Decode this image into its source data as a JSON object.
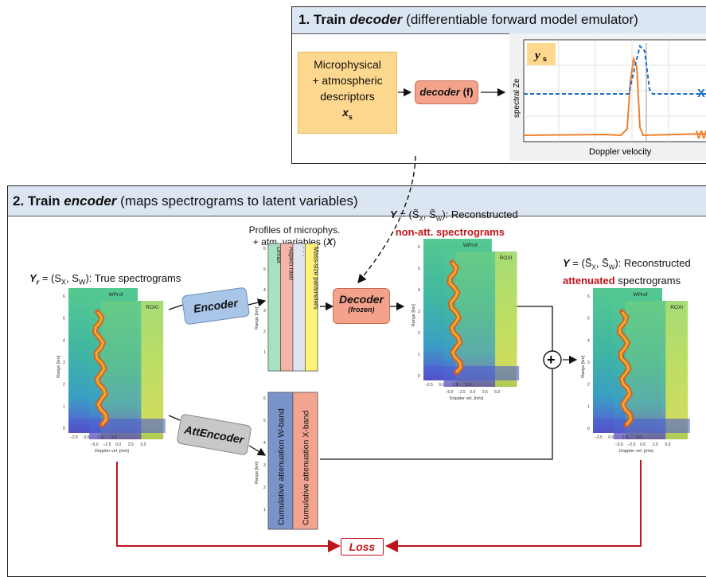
{
  "panel1": {
    "title_number": "1.",
    "title_bold": "Train",
    "title_italic": "decoder",
    "title_rest": "(differentiable forward model emulator)",
    "input_box": {
      "line1": "Microphysical",
      "line2": "+ atmospheric",
      "line3": "descriptors",
      "symbol": "x",
      "subscript": "s"
    },
    "decoder": {
      "name": "decoder",
      "suffix": "(f)"
    },
    "plot": {
      "legend_symbol": "y",
      "legend_subscript": "s",
      "ylabel": "spectral Ze",
      "xlabel": "Doppler velocity",
      "x_label": "X",
      "w_label": "W"
    }
  },
  "panel2": {
    "title_number": "2.",
    "title_bold": "Train",
    "title_italic": "encoder",
    "title_rest": "(maps spectrograms to latent variables)",
    "true_spec": {
      "sym": "Y",
      "sub": "r",
      "eq": "= (S",
      "s1": "X",
      "comma": ", S",
      "s2": "W",
      "rest": "): True spectrograms"
    },
    "profiles_label_line1": "Profiles of microphys.",
    "profiles_label_line2": "+ atm. variables (",
    "profiles_label_sym": "X",
    "profiles_label_end": ")",
    "profile_bars": [
      "Dmax",
      "Aspect ratio",
      "·  ·  ·",
      "Mass-size parameters"
    ],
    "profile_colors": [
      "#a8e0c2",
      "#f6b4a8",
      "#dfe4ef",
      "#fff37a"
    ],
    "att_bars": [
      "Cumulative attenuation W-band",
      "Cumulative attenuation X-band"
    ],
    "att_colors": [
      "#7a93c9",
      "#f2a48e"
    ],
    "range_label": "Range [km]",
    "range_ticks": [
      "6",
      "5",
      "4",
      "3",
      "2",
      "1"
    ],
    "encoder_label": "Encoder",
    "attencoder_label": "AttEncoder",
    "decoder_label": "Decoder",
    "decoder_sub": "(frozen)",
    "recon_nonatt": {
      "sym": "Y",
      "eq": "= (",
      "sx": "S̃",
      "sx_sub": "X",
      "comma": ", ",
      "sw": "S̃",
      "sw_sub": "W",
      "rest": "): Reconstructed",
      "line2": "non-att. spectrograms"
    },
    "recon_att": {
      "sym": "Y",
      "eq": "= (",
      "sx": "S̃",
      "sx_sub": "X",
      "comma": ", ",
      "sw": "S̃",
      "sw_sub": "W",
      "rest": "): Reconstructed",
      "line2_red": "attenuated",
      "line2_rest": "spectrograms"
    },
    "plus": "+",
    "loss": "Loss"
  },
  "spectrogram": {
    "wprof": "WProf",
    "roxi": "ROXI",
    "xlabel": "Doppler vel. [m/s]",
    "ylabel": "Range [km]",
    "yticks": [
      "6",
      "5",
      "4",
      "3",
      "2",
      "1",
      "0"
    ],
    "xticks_back": [
      "−5.0",
      "−2.5",
      "0.0",
      "2.5",
      "5.0"
    ],
    "xticks_front": [
      "−2.5",
      "0.0",
      "2.5",
      "5.0"
    ]
  },
  "colors": {
    "header_bg": "#dbe6f2",
    "input_box": "#fed88e",
    "decoder_fill": "#f3a28b",
    "encoder_fill": "#a9c6e8",
    "attencoder_fill": "#c8c8c8",
    "loss_red": "#c0141c",
    "x_band": "#1f6fc4",
    "w_band": "#f07f2a"
  }
}
